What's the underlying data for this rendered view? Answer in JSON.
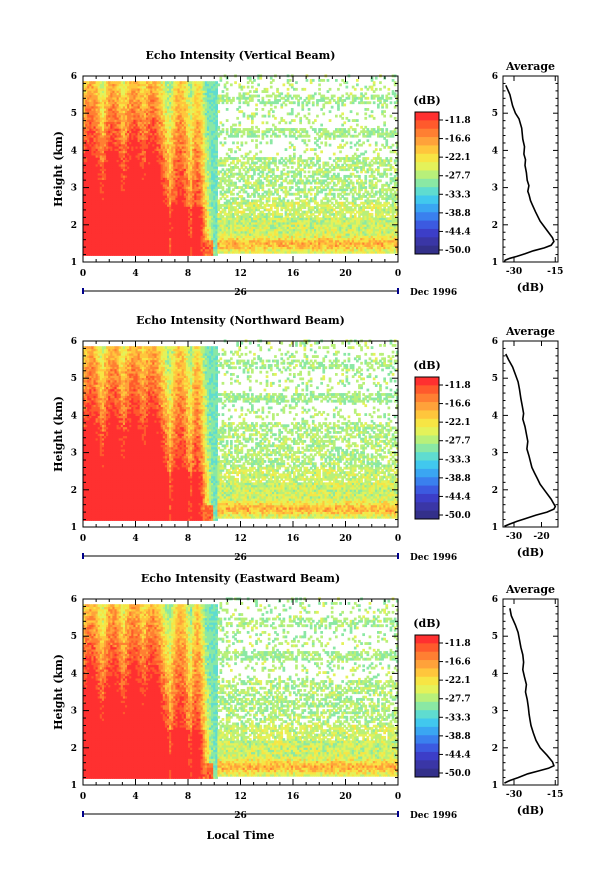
{
  "colorbar": {
    "unit": "(dB)",
    "labels": [
      "-11.8",
      "-16.6",
      "-22.1",
      "-27.7",
      "-33.3",
      "-38.8",
      "-44.4",
      "-50.0"
    ],
    "colors": [
      "#ff3030",
      "#ff5a2c",
      "#ff7f32",
      "#ffa23a",
      "#ffc63c",
      "#f7e544",
      "#e4f25a",
      "#b8f07a",
      "#8ae8a4",
      "#5fdcd0",
      "#41c8ee",
      "#3aa6f2",
      "#3a80ee",
      "#3c5ae0",
      "#3c3ec8",
      "#3a36a6",
      "#33308a"
    ]
  },
  "date": {
    "day_label": "26",
    "month_label": "Dec 1996"
  },
  "xaxis": {
    "title": "Local Time"
  },
  "avg_title": "Average",
  "avg_xlabel": "(dB)",
  "chart_data": [
    {
      "type": "heatmap",
      "title": "Echo Intensity (Vertical Beam)",
      "xlabel": "",
      "ylabel": "Height (km)",
      "xticks": [
        "0",
        "4",
        "8",
        "12",
        "16",
        "20",
        "0"
      ],
      "yticks": [
        "1",
        "2",
        "3",
        "4",
        "5",
        "6"
      ],
      "xlim": [
        0,
        24
      ],
      "ylim": [
        1,
        6
      ]
    },
    {
      "type": "line",
      "title": "Average",
      "xlabel": "(dB)",
      "ylabel": "",
      "xticks": [
        "-30",
        "-15"
      ],
      "yticks": [
        "1",
        "2",
        "3",
        "4",
        "5",
        "6"
      ],
      "xlim": [
        -34,
        -14
      ],
      "ylim": [
        1,
        6
      ],
      "x": [
        -33,
        -31.5,
        -30.5,
        -29.5,
        -28.2,
        -27.2,
        -26.8,
        -26.2,
        -26.4,
        -25.8,
        -26,
        -25.5,
        -25.2,
        -24.6,
        -25,
        -24.5,
        -24,
        -23.4,
        -22.2,
        -20.5,
        -18,
        -16,
        -15.5,
        -16.5,
        -19,
        -23,
        -26,
        -29,
        -31.5,
        -33.2,
        -33.5
      ],
      "y": [
        5.75,
        5.5,
        5.2,
        5,
        4.85,
        4.6,
        4.3,
        4.1,
        3.9,
        3.75,
        3.6,
        3.4,
        3.2,
        3.05,
        2.9,
        2.8,
        2.65,
        2.55,
        2.35,
        2.1,
        1.85,
        1.65,
        1.55,
        1.45,
        1.38,
        1.3,
        1.22,
        1.15,
        1.1,
        1.05,
        1
      ]
    },
    {
      "type": "heatmap",
      "title": "Echo Intensity (Northward Beam)",
      "xlabel": "",
      "ylabel": "Height (km)",
      "xticks": [
        "0",
        "4",
        "8",
        "12",
        "16",
        "20",
        "0"
      ],
      "yticks": [
        "1",
        "2",
        "3",
        "4",
        "5",
        "6"
      ],
      "xlim": [
        0,
        24
      ],
      "ylim": [
        1,
        6
      ]
    },
    {
      "type": "line",
      "title": "Average",
      "xlabel": "(dB)",
      "ylabel": "",
      "xticks": [
        "-30",
        "-20"
      ],
      "yticks": [
        "1",
        "2",
        "3",
        "4",
        "5",
        "6"
      ],
      "xlim": [
        -34,
        -14
      ],
      "ylim": [
        1,
        6
      ],
      "x": [
        -33,
        -32,
        -30.5,
        -29.5,
        -28.5,
        -28,
        -27.5,
        -27,
        -26.5,
        -26.8,
        -26,
        -25.5,
        -25,
        -25.3,
        -24.5,
        -24,
        -23.5,
        -22.5,
        -21.5,
        -20.5,
        -18.5,
        -16.5,
        -15,
        -15.5,
        -18,
        -22,
        -26,
        -29,
        -31.5,
        -33.5
      ],
      "y": [
        5.65,
        5.5,
        5.3,
        5.1,
        4.9,
        4.7,
        4.45,
        4.25,
        4.05,
        3.9,
        3.7,
        3.5,
        3.3,
        3.1,
        2.9,
        2.75,
        2.6,
        2.45,
        2.3,
        2.15,
        1.95,
        1.75,
        1.55,
        1.48,
        1.4,
        1.32,
        1.22,
        1.15,
        1.08,
        1.02
      ]
    },
    {
      "type": "heatmap",
      "title": "Echo Intensity (Eastward Beam)",
      "xlabel": "Local Time",
      "ylabel": "Height (km)",
      "xticks": [
        "0",
        "4",
        "8",
        "12",
        "16",
        "20",
        "0"
      ],
      "yticks": [
        "1",
        "2",
        "3",
        "4",
        "5",
        "6"
      ],
      "xlim": [
        0,
        24
      ],
      "ylim": [
        1,
        6
      ]
    },
    {
      "type": "line",
      "title": "Average",
      "xlabel": "(dB)",
      "ylabel": "",
      "xticks": [
        "-30",
        "-15"
      ],
      "yticks": [
        "1",
        "2",
        "3",
        "4",
        "5",
        "6"
      ],
      "xlim": [
        -34,
        -14
      ],
      "ylim": [
        1,
        6
      ],
      "x": [
        -31.5,
        -31,
        -29.5,
        -28.5,
        -28,
        -27.5,
        -26.8,
        -26.5,
        -26.8,
        -26.2,
        -25.5,
        -25.8,
        -25.2,
        -24.8,
        -24.5,
        -24.2,
        -23.8,
        -23,
        -22,
        -20.5,
        -18,
        -16,
        -15.5,
        -17.5,
        -21,
        -25,
        -28.5,
        -31.5,
        -33.5
      ],
      "y": [
        5.75,
        5.55,
        5.3,
        5.1,
        4.9,
        4.7,
        4.5,
        4.3,
        4.1,
        3.9,
        3.7,
        3.5,
        3.3,
        3.1,
        2.9,
        2.75,
        2.6,
        2.4,
        2.2,
        2,
        1.8,
        1.62,
        1.52,
        1.45,
        1.38,
        1.3,
        1.2,
        1.12,
        1.05
      ]
    }
  ]
}
